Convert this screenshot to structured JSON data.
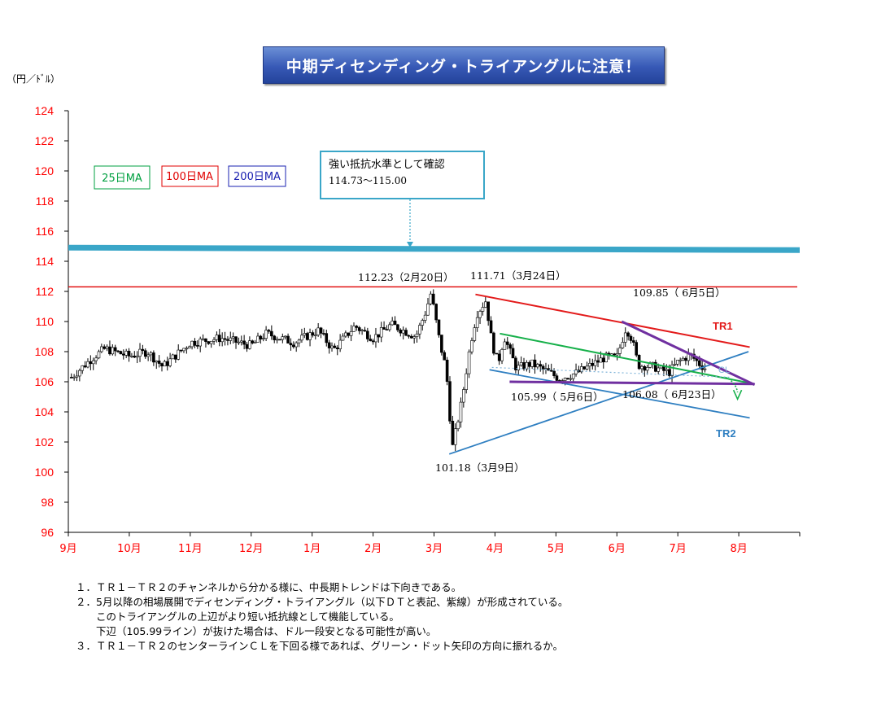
{
  "title": "中期ディセンディング・トライアングルに注意！",
  "unit_label": "（円／ﾄﾞﾙ）",
  "legend": [
    {
      "label": "25日MA",
      "color": "#00a040"
    },
    {
      "label": "100日MA",
      "color": "#e00000"
    },
    {
      "label": "200日MA",
      "color": "#1a20b0"
    }
  ],
  "callout": {
    "title": "強い抵抗水準として確認",
    "range": "114.73～115.00"
  },
  "annotations": {
    "a1": "112.23（2月20日）",
    "a2": "111.71（3月24日）",
    "a3": "109.85（ 6月5日）",
    "a4": "105.99（ 5月6日）",
    "a5": "106.08（ 6月23日）",
    "a6": "101.18（3月9日）",
    "tr1": "TR1",
    "tr2": "TR2",
    "cl": "CL"
  },
  "colors": {
    "tr1": "#e31b1b",
    "tr2": "#2f7fc1",
    "purple": "#7030a0",
    "green": "#16b04a",
    "resistance": "#3aa6c8"
  },
  "notes": [
    "１．ＴＲ１－ＴＲ２のチャンネルから分かる様に、中長期トレンドは下向きである。",
    "２．5月以降の相場展開でディセンディング・トライアングル（以下ＤＴと表記、紫線）が形成されている。",
    "　　このトライアングルの上辺がより短い抵抗線として機能している。",
    "　　下辺（105.99ライン）が抜けた場合は、ドル一段安となる可能性が高い。",
    "３．ＴＲ１－ＴＲ２のセンターラインＣＬを下回る様であれば、グリーン・ドット矢印の方向に振れるか。"
  ],
  "chart_data": {
    "type": "candlestick",
    "y_ticks": [
      96,
      98,
      100,
      102,
      104,
      106,
      108,
      110,
      112,
      114,
      116,
      118,
      120,
      122,
      124
    ],
    "ylim": [
      96,
      124
    ],
    "x_ticks": [
      "9月",
      "10月",
      "11月",
      "12月",
      "1月",
      "2月",
      "3月",
      "4月",
      "5月",
      "6月",
      "7月",
      "8月"
    ],
    "horizontal_lines": [
      {
        "name": "resistance",
        "value": 114.85
      },
      {
        "name": "high-line",
        "value": 112.3
      }
    ],
    "key_points": [
      {
        "label": "112.23",
        "date": "2月20日",
        "value": 112.23
      },
      {
        "label": "111.71",
        "date": "3月24日",
        "value": 111.71
      },
      {
        "label": "109.85",
        "date": "6月5日",
        "value": 109.85
      },
      {
        "label": "105.99",
        "date": "5月6日",
        "value": 105.99
      },
      {
        "label": "106.08",
        "date": "6月23日",
        "value": 106.08
      },
      {
        "label": "101.18",
        "date": "3月9日",
        "value": 101.18
      }
    ],
    "trend_lines": [
      {
        "name": "TR1",
        "from": [
          6.68,
          111.8
        ],
        "to": [
          11.18,
          108.3
        ]
      },
      {
        "name": "TR2-upper",
        "from": [
          6.25,
          101.2
        ],
        "to": [
          11.16,
          108.0
        ]
      },
      {
        "name": "TR2-lower",
        "from": [
          6.91,
          106.8
        ],
        "to": [
          11.18,
          103.6
        ]
      },
      {
        "name": "green",
        "from": [
          7.08,
          109.2
        ],
        "to": [
          11.2,
          105.9
        ]
      },
      {
        "name": "DT-upper",
        "from": [
          9.08,
          110.0
        ],
        "to": [
          11.26,
          105.8
        ]
      },
      {
        "name": "DT-lower",
        "from": [
          7.24,
          106.0
        ],
        "to": [
          11.26,
          105.85
        ]
      },
      {
        "name": "CL",
        "from": [
          6.95,
          106.95
        ],
        "to": [
          10.85,
          106.3
        ]
      }
    ]
  }
}
